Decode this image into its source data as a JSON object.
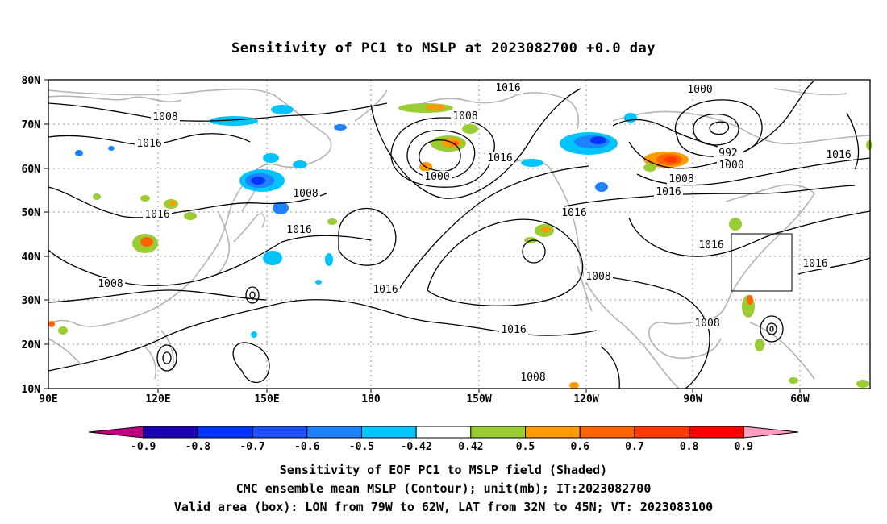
{
  "title": "Sensitivity of PC1 to MSLP at 2023082700 +0.0 day",
  "lat_labels": [
    "80N",
    "70N",
    "60N",
    "50N",
    "40N",
    "30N",
    "20N",
    "10N"
  ],
  "lon_labels": [
    "90E",
    "120E",
    "150E",
    "180",
    "150W",
    "120W",
    "90W",
    "60W"
  ],
  "colorbar": {
    "labels": [
      "-0.9",
      "-0.8",
      "-0.7",
      "-0.6",
      "-0.5",
      "-0.42",
      "0.42",
      "0.5",
      "0.6",
      "0.7",
      "0.8",
      "0.9"
    ],
    "colors": [
      "#c0007f",
      "#1a00b0",
      "#0033ff",
      "#1f50ff",
      "#1e82ff",
      "#00c4ff",
      "#ffffff",
      "#9acd32",
      "#ff9a00",
      "#ff6400",
      "#ff3a00",
      "#ff0000",
      "#ff9dc3"
    ]
  },
  "contour_labels": [
    "1016",
    "1000",
    "1008",
    "1016",
    "1008",
    "1016",
    "1000",
    "1016",
    "992",
    "1000",
    "1008",
    "1016",
    "1008",
    "1016",
    "1016",
    "1016",
    "1016",
    "1008",
    "1016",
    "1008",
    "1008",
    "1016",
    "1008"
  ],
  "captions": {
    "line1": "Sensitivity of EOF PC1 to MSLP field (Shaded)",
    "line2": "CMC ensemble mean MSLP (Contour); unit(mb); IT:2023082700",
    "line3": "Valid area (box): LON from 79W to 62W, LAT from 32N to 45N; VT: 2023083100"
  },
  "valid_box": {
    "lon_min": -79,
    "lon_max": -62,
    "lat_min": 32,
    "lat_max": 45
  }
}
